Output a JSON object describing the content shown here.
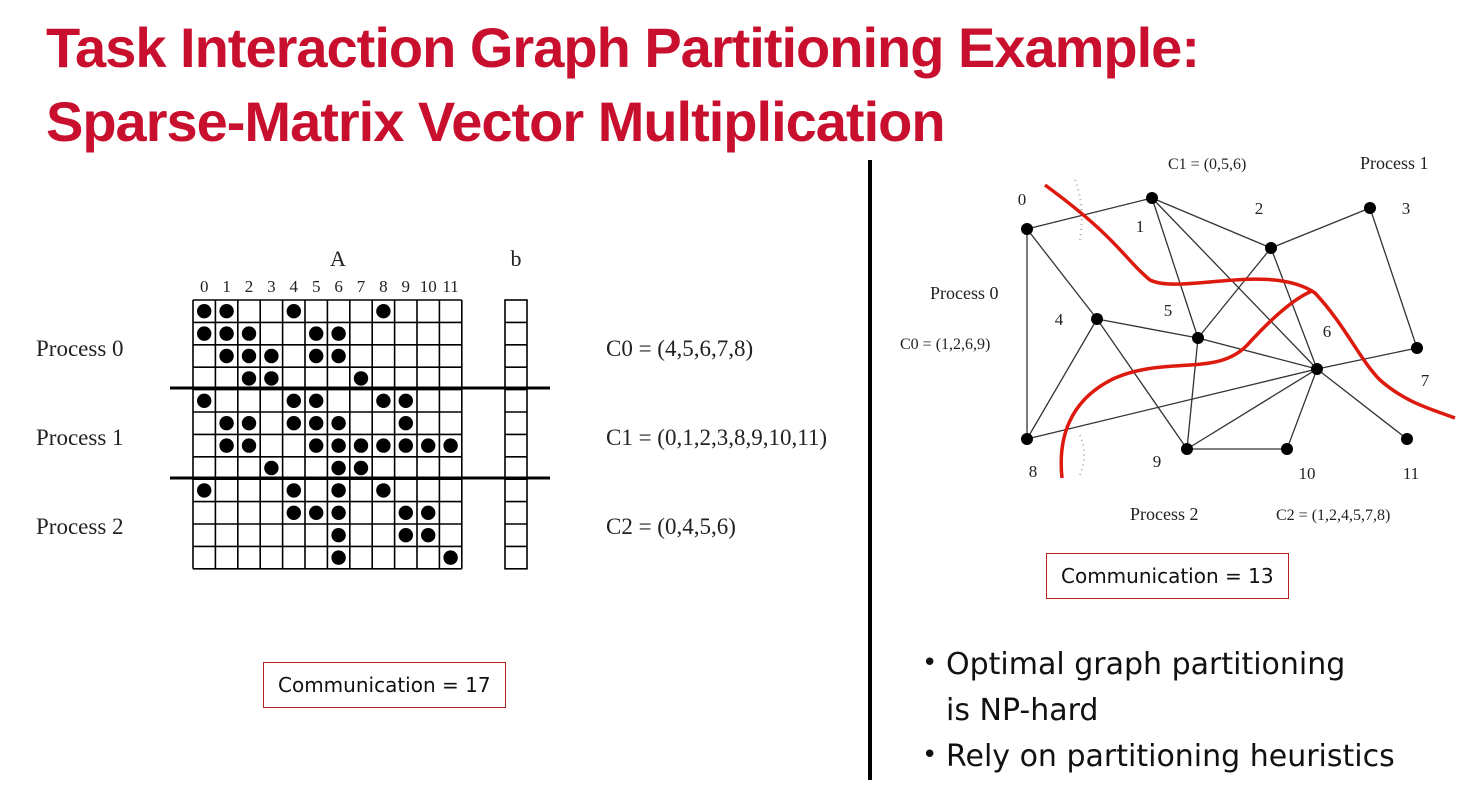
{
  "title": {
    "line1": "Task Interaction Graph Partitioning Example:",
    "line2": "Sparse-Matrix Vector Multiplication"
  },
  "matrix": {
    "label_A": "A",
    "label_b": "b",
    "column_labels": [
      "0",
      "1",
      "2",
      "3",
      "4",
      "5",
      "6",
      "7",
      "8",
      "9",
      "10",
      "11"
    ],
    "nonzeros": [
      [
        0,
        1,
        4,
        8
      ],
      [
        0,
        1,
        2,
        5,
        6
      ],
      [
        1,
        2,
        3,
        5,
        6
      ],
      [
        2,
        3,
        7
      ],
      [
        0,
        4,
        5,
        8,
        9
      ],
      [
        1,
        2,
        4,
        5,
        6,
        9
      ],
      [
        1,
        2,
        5,
        6,
        7,
        8,
        9,
        10,
        11
      ],
      [
        3,
        6,
        7
      ],
      [
        0,
        4,
        6,
        8
      ],
      [
        4,
        5,
        6,
        9,
        10
      ],
      [
        6,
        9,
        10
      ],
      [
        6,
        11
      ]
    ],
    "process_labels": [
      "Process 0",
      "Process 1",
      "Process 2"
    ],
    "sets": [
      "C0 = (4,5,6,7,8)",
      "C1 = (0,1,2,3,8,9,10,11)",
      "C2 = (0,4,5,6)"
    ],
    "communication": "Communication = 17"
  },
  "graph": {
    "node_labels": [
      "0",
      "1",
      "2",
      "3",
      "4",
      "5",
      "6",
      "7",
      "8",
      "9",
      "10",
      "11"
    ],
    "edges": [
      [
        0,
        1
      ],
      [
        0,
        4
      ],
      [
        0,
        8
      ],
      [
        1,
        5
      ],
      [
        1,
        2
      ],
      [
        1,
        6
      ],
      [
        2,
        3
      ],
      [
        2,
        5
      ],
      [
        2,
        6
      ],
      [
        3,
        7
      ],
      [
        4,
        5
      ],
      [
        4,
        8
      ],
      [
        4,
        9
      ],
      [
        5,
        6
      ],
      [
        5,
        9
      ],
      [
        6,
        7
      ],
      [
        6,
        9
      ],
      [
        6,
        10
      ],
      [
        6,
        11
      ],
      [
        8,
        6
      ],
      [
        9,
        10
      ]
    ],
    "process0": "Process 0",
    "process1": "Process 1",
    "process2": "Process 2",
    "c0": "C0 = (1,2,6,9)",
    "c1": "C1 = (0,5,6)",
    "c2": "C2 = (1,2,4,5,7,8)",
    "communication": "Communication = 13",
    "cut_color": "#dd1a0e"
  },
  "bullets": [
    "Optimal graph partitioning",
    "is NP-hard",
    "Rely on partitioning heuristics"
  ]
}
